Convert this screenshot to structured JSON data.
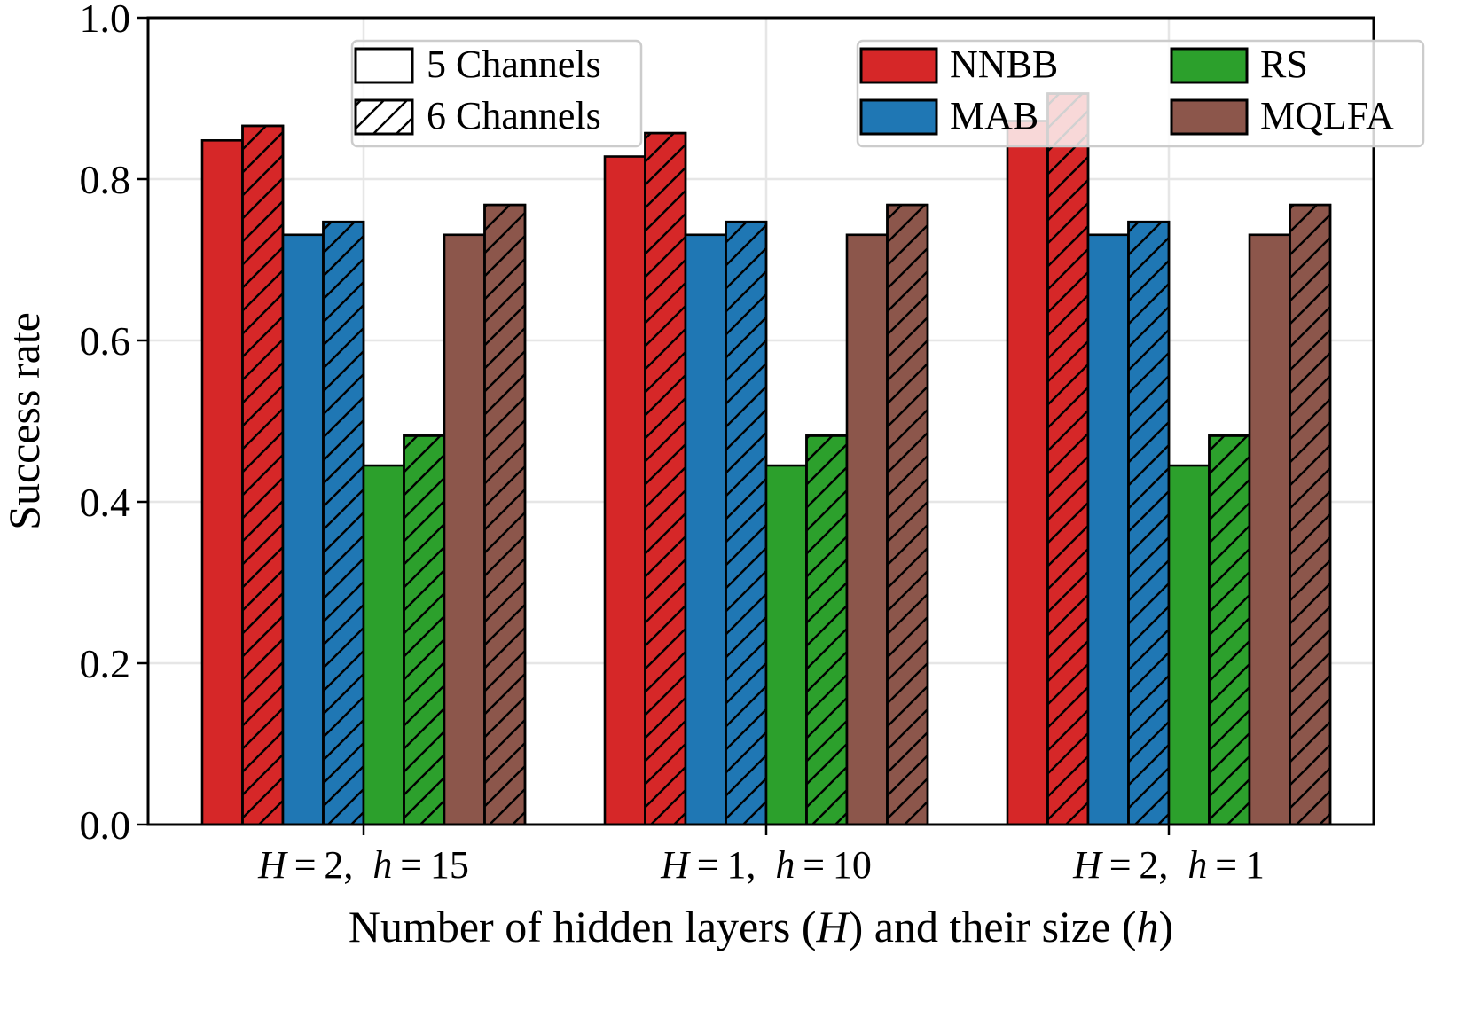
{
  "chart_data": {
    "type": "bar",
    "title": "",
    "xlabel": "Number of hidden layers (H) and their size (h)",
    "ylabel": "Success rate",
    "ylim": [
      0,
      1.0
    ],
    "yticks": [
      "0.0",
      "0.2",
      "0.4",
      "0.6",
      "0.8",
      "1.0"
    ],
    "grid": true,
    "categories": [
      {
        "H": "2",
        "h": "15"
      },
      {
        "H": "1",
        "h": "10"
      },
      {
        "H": "2",
        "h": "1"
      }
    ],
    "channel_legend": [
      {
        "label": "5 Channels",
        "pattern": "solid"
      },
      {
        "label": "6 Channels",
        "pattern": "hatched"
      }
    ],
    "method_legend": [
      {
        "label": "NNBB",
        "color": "#d62728"
      },
      {
        "label": "MAB",
        "color": "#1f77b4"
      },
      {
        "label": "RS",
        "color": "#2ca02c"
      },
      {
        "label": "MQLFA",
        "color": "#8c564b"
      }
    ],
    "series": [
      {
        "method": "NNBB",
        "channels": "5 Channels",
        "color": "#d62728",
        "hatch": false,
        "values": [
          0.848,
          0.828,
          0.872
        ]
      },
      {
        "method": "NNBB",
        "channels": "6 Channels",
        "color": "#d62728",
        "hatch": true,
        "values": [
          0.866,
          0.857,
          0.906
        ]
      },
      {
        "method": "MAB",
        "channels": "5 Channels",
        "color": "#1f77b4",
        "hatch": false,
        "values": [
          0.731,
          0.731,
          0.731
        ]
      },
      {
        "method": "MAB",
        "channels": "6 Channels",
        "color": "#1f77b4",
        "hatch": true,
        "values": [
          0.747,
          0.747,
          0.747
        ]
      },
      {
        "method": "RS",
        "channels": "5 Channels",
        "color": "#2ca02c",
        "hatch": false,
        "values": [
          0.445,
          0.445,
          0.445
        ]
      },
      {
        "method": "RS",
        "channels": "6 Channels",
        "color": "#2ca02c",
        "hatch": true,
        "values": [
          0.482,
          0.482,
          0.482
        ]
      },
      {
        "method": "MQLFA",
        "channels": "5 Channels",
        "color": "#8c564b",
        "hatch": false,
        "values": [
          0.731,
          0.731,
          0.731
        ]
      },
      {
        "method": "MQLFA",
        "channels": "6 Channels",
        "color": "#8c564b",
        "hatch": true,
        "values": [
          0.768,
          0.768,
          0.768
        ]
      }
    ]
  }
}
